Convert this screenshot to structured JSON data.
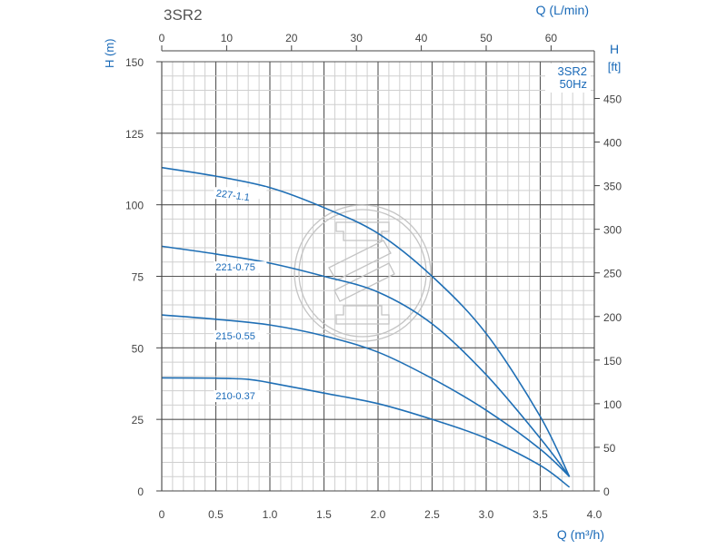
{
  "chart_data": {
    "type": "line",
    "title": "3SR2",
    "box_label": [
      "3SR2",
      "50Hz"
    ],
    "xlabel": "Q (m³/h)",
    "ylabel": "H (m)",
    "x2label": "Q (L/min)",
    "y2label": [
      "H",
      "[ft]"
    ],
    "xlim": [
      0,
      4.0
    ],
    "ylim": [
      0,
      150
    ],
    "x_ticks": [
      0,
      0.5,
      1.0,
      1.5,
      2.0,
      2.5,
      3.0,
      3.5,
      4.0
    ],
    "x_tick_labels": [
      "0",
      "0.5",
      "1.0",
      "1.5",
      "2.0",
      "2.5",
      "3.0",
      "3.5",
      "4.0"
    ],
    "y_ticks": [
      0,
      25,
      50,
      75,
      100,
      125,
      150
    ],
    "x2_ticks": [
      0,
      10,
      20,
      30,
      40,
      50,
      60
    ],
    "y2_ticks": [
      0,
      50,
      100,
      150,
      200,
      250,
      300,
      350,
      400,
      450
    ],
    "grid": true,
    "line_color": "#1f6fb5",
    "label_color": "#1a6ab8",
    "series": [
      {
        "name": "227-1.1",
        "x": [
          0,
          0.5,
          1.0,
          1.5,
          2.0,
          2.5,
          3.0,
          3.5,
          3.77
        ],
        "y": [
          113,
          110,
          106,
          99,
          90,
          75,
          55,
          26,
          5
        ]
      },
      {
        "name": "221-0.75",
        "x": [
          0,
          0.5,
          1.0,
          1.5,
          2.0,
          2.5,
          3.0,
          3.5,
          3.77
        ],
        "y": [
          85.5,
          82.8,
          79.6,
          75,
          69.5,
          58.4,
          40.6,
          18.4,
          5
        ]
      },
      {
        "name": "215-0.55",
        "x": [
          0,
          0.5,
          1.0,
          1.5,
          2.0,
          2.5,
          3.0,
          3.5,
          3.77
        ],
        "y": [
          61.5,
          60,
          58,
          54.2,
          48.5,
          39.3,
          28.2,
          14.6,
          5
        ]
      },
      {
        "name": "210-0.37",
        "x": [
          0,
          0.5,
          0.8,
          1.0,
          1.5,
          2.0,
          2.5,
          3.0,
          3.5,
          3.77
        ],
        "y": [
          39.5,
          39.4,
          39,
          37.8,
          34.2,
          30.5,
          25,
          18.4,
          8.9,
          1.3
        ]
      }
    ]
  }
}
